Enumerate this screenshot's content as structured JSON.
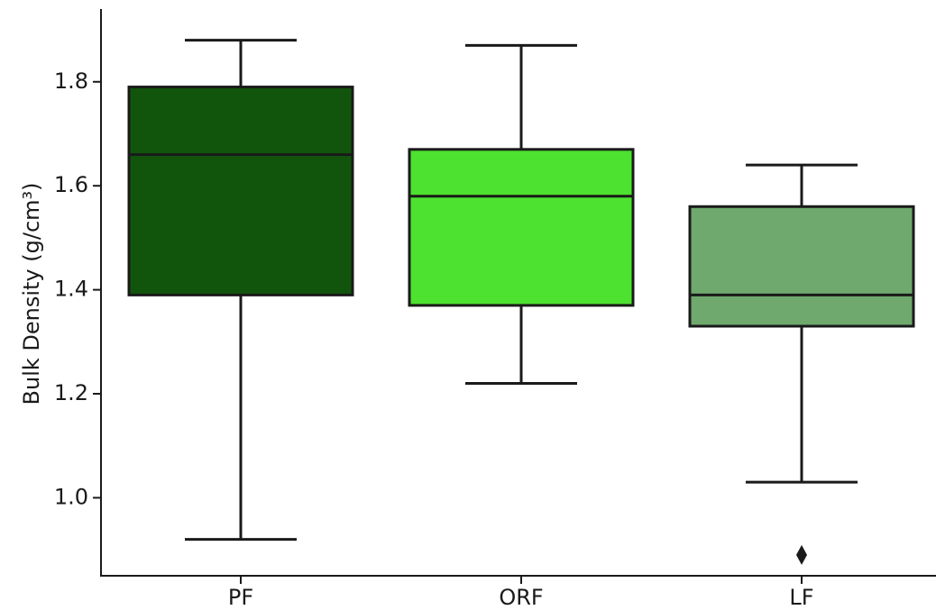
{
  "chart_data": {
    "type": "box",
    "title": "",
    "xlabel": "",
    "ylabel": "Bulk Density (g/cm³)",
    "ylim": [
      0.85,
      1.94
    ],
    "yticks": [
      1.0,
      1.2,
      1.4,
      1.6,
      1.8
    ],
    "ytick_labels": [
      "1.0",
      "1.2",
      "1.4",
      "1.6",
      "1.8"
    ],
    "grid": false,
    "categories": [
      "PF",
      "ORF",
      "LF"
    ],
    "boxes": [
      {
        "category": "PF",
        "whisker_low": 0.92,
        "q1": 1.39,
        "median": 1.66,
        "q3": 1.79,
        "whisker_high": 1.88,
        "outliers": [],
        "color": "#11550c"
      },
      {
        "category": "ORF",
        "whisker_low": 1.22,
        "q1": 1.37,
        "median": 1.58,
        "q3": 1.67,
        "whisker_high": 1.87,
        "outliers": [],
        "color": "#4de22f"
      },
      {
        "category": "LF",
        "whisker_low": 1.03,
        "q1": 1.33,
        "median": 1.39,
        "q3": 1.56,
        "whisker_high": 1.64,
        "outliers": [
          0.89
        ],
        "color": "#6fa96d"
      }
    ]
  }
}
